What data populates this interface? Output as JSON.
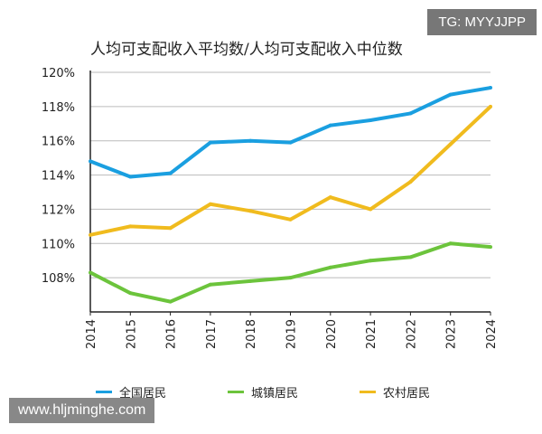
{
  "watermarks": {
    "top": "TG: MYYJJPP",
    "bottom": "www.hljminghe.com"
  },
  "chart_data": {
    "type": "line",
    "title": "人均可支配收入平均数/人均可支配收入中位数",
    "xlabel": "",
    "ylabel": "",
    "x": [
      "2014",
      "2015",
      "2016",
      "2017",
      "2018",
      "2019",
      "2020",
      "2021",
      "2022",
      "2023",
      "2024"
    ],
    "ylim": [
      106,
      120
    ],
    "yticks": [
      "108%",
      "110%",
      "112%",
      "114%",
      "116%",
      "118%",
      "120%"
    ],
    "grid": true,
    "legend_position": "bottom",
    "series": [
      {
        "name": "全国居民",
        "color": "#1a9fe0",
        "values": [
          114.8,
          113.9,
          114.1,
          115.9,
          116.0,
          115.9,
          116.9,
          117.2,
          117.6,
          118.7,
          119.1
        ]
      },
      {
        "name": "城镇居民",
        "color": "#6cc43c",
        "values": [
          108.3,
          107.1,
          106.6,
          107.6,
          107.8,
          108.0,
          108.6,
          109.0,
          109.2,
          110.0,
          109.8
        ]
      },
      {
        "name": "农村居民",
        "color": "#f0bb1e",
        "values": [
          110.5,
          111.0,
          110.9,
          112.3,
          111.9,
          111.4,
          112.7,
          112.0,
          113.6,
          115.8,
          118.0
        ]
      }
    ]
  }
}
